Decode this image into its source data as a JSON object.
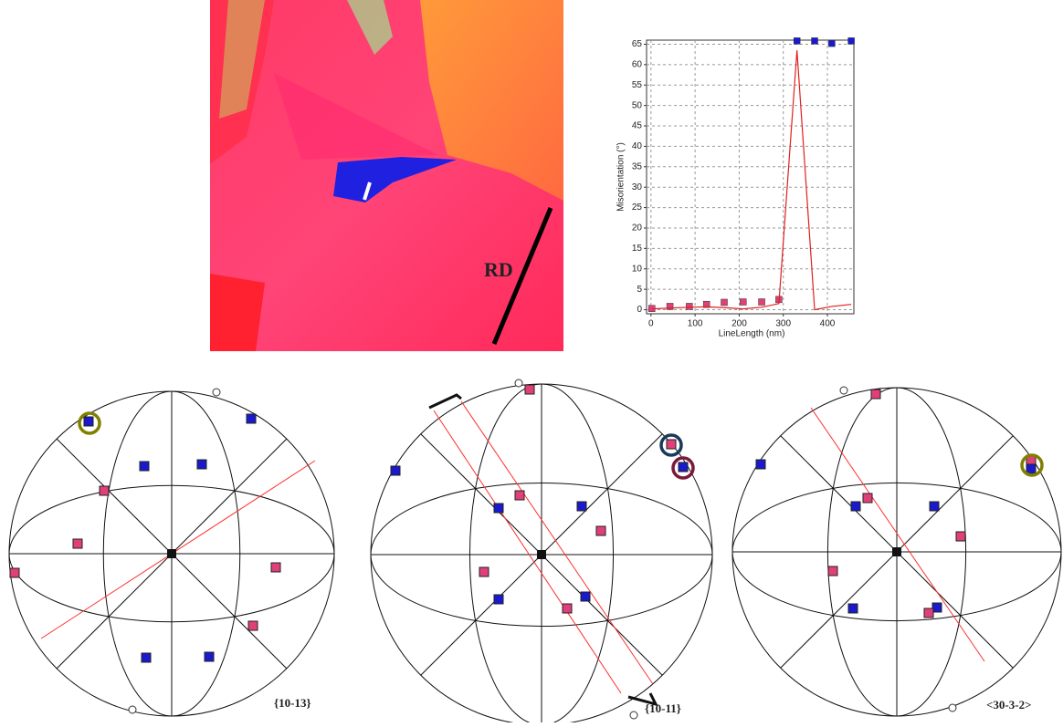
{
  "chart_data": {
    "type": "line",
    "x_label": "LineLength (nm)",
    "y_label": "Misorientation (°)",
    "xlim": [
      -10,
      460
    ],
    "ylim": [
      -1,
      66
    ],
    "xticks": [
      0,
      100,
      200,
      300,
      400
    ],
    "yticks": [
      0,
      5,
      10,
      15,
      20,
      25,
      30,
      35,
      40,
      45,
      50,
      55,
      60,
      65
    ],
    "grid": true,
    "series": [
      {
        "color": "#e0407a",
        "marker": "square",
        "x": [
          2,
          43,
          87,
          126,
          166,
          209,
          251,
          290
        ],
        "values": [
          0.3,
          0.8,
          0.8,
          1.3,
          1.8,
          1.9,
          1.9,
          2.5
        ]
      },
      {
        "color": "#1a1acc",
        "marker": "square",
        "x": [
          331,
          371,
          410,
          454
        ],
        "values": [
          65.8,
          65.8,
          65.2,
          65.8
        ]
      },
      {
        "color": "#e02020",
        "marker": "none",
        "x": [
          2,
          43,
          87,
          126,
          166,
          209,
          251,
          290,
          331,
          371,
          410,
          454
        ],
        "values": [
          0.2,
          0.4,
          0.6,
          0.7,
          0.5,
          0.2,
          0.6,
          1.5,
          63.5,
          0,
          0.8,
          1.3
        ]
      }
    ]
  },
  "map": {
    "label": "RD"
  },
  "pole_figures": [
    {
      "label": "{10-13}"
    },
    {
      "label": "{10-11}"
    },
    {
      "label": "<30-3-2>"
    }
  ]
}
